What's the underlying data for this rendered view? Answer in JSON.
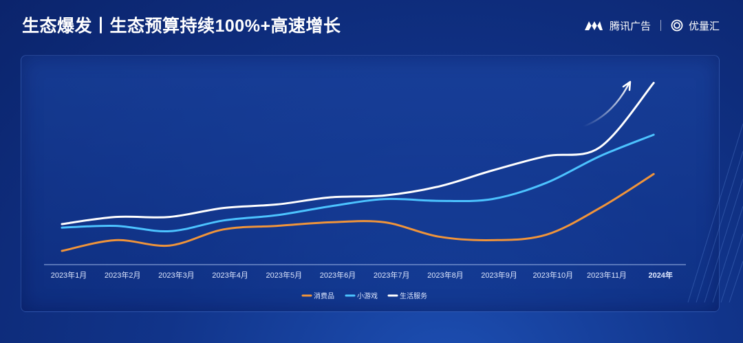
{
  "header": {
    "title": "生态爆发丨生态预算持续100%+高速增长",
    "brand_primary": "腾讯广告",
    "brand_secondary": "优量汇"
  },
  "chart_data": {
    "type": "line",
    "title": "",
    "xlabel": "",
    "ylabel": "",
    "categories": [
      "2023年1月",
      "2023年2月",
      "2023年3月",
      "2023年4月",
      "2023年5月",
      "2023年6月",
      "2023年7月",
      "2023年8月",
      "2023年9月",
      "2023年10月",
      "2023年11月",
      "2024年"
    ],
    "highlight_category": "2024年",
    "ylim": [
      0,
      100
    ],
    "grid": false,
    "legend_position": "bottom",
    "series": [
      {
        "name": "消费品",
        "color": "#f0943a",
        "values": [
          5,
          11,
          8,
          17,
          19,
          21,
          21,
          13,
          11,
          14,
          29,
          48
        ]
      },
      {
        "name": "小游戏",
        "color": "#4cc3ff",
        "values": [
          18,
          19,
          16,
          22,
          25,
          30,
          34,
          33,
          34,
          43,
          58,
          70
        ]
      },
      {
        "name": "生活服务",
        "color": "#ffffff",
        "values": [
          20,
          24,
          24,
          29,
          31,
          35,
          36,
          41,
          50,
          58,
          63,
          99
        ]
      }
    ],
    "annotations": [
      "growth-arrow"
    ]
  }
}
